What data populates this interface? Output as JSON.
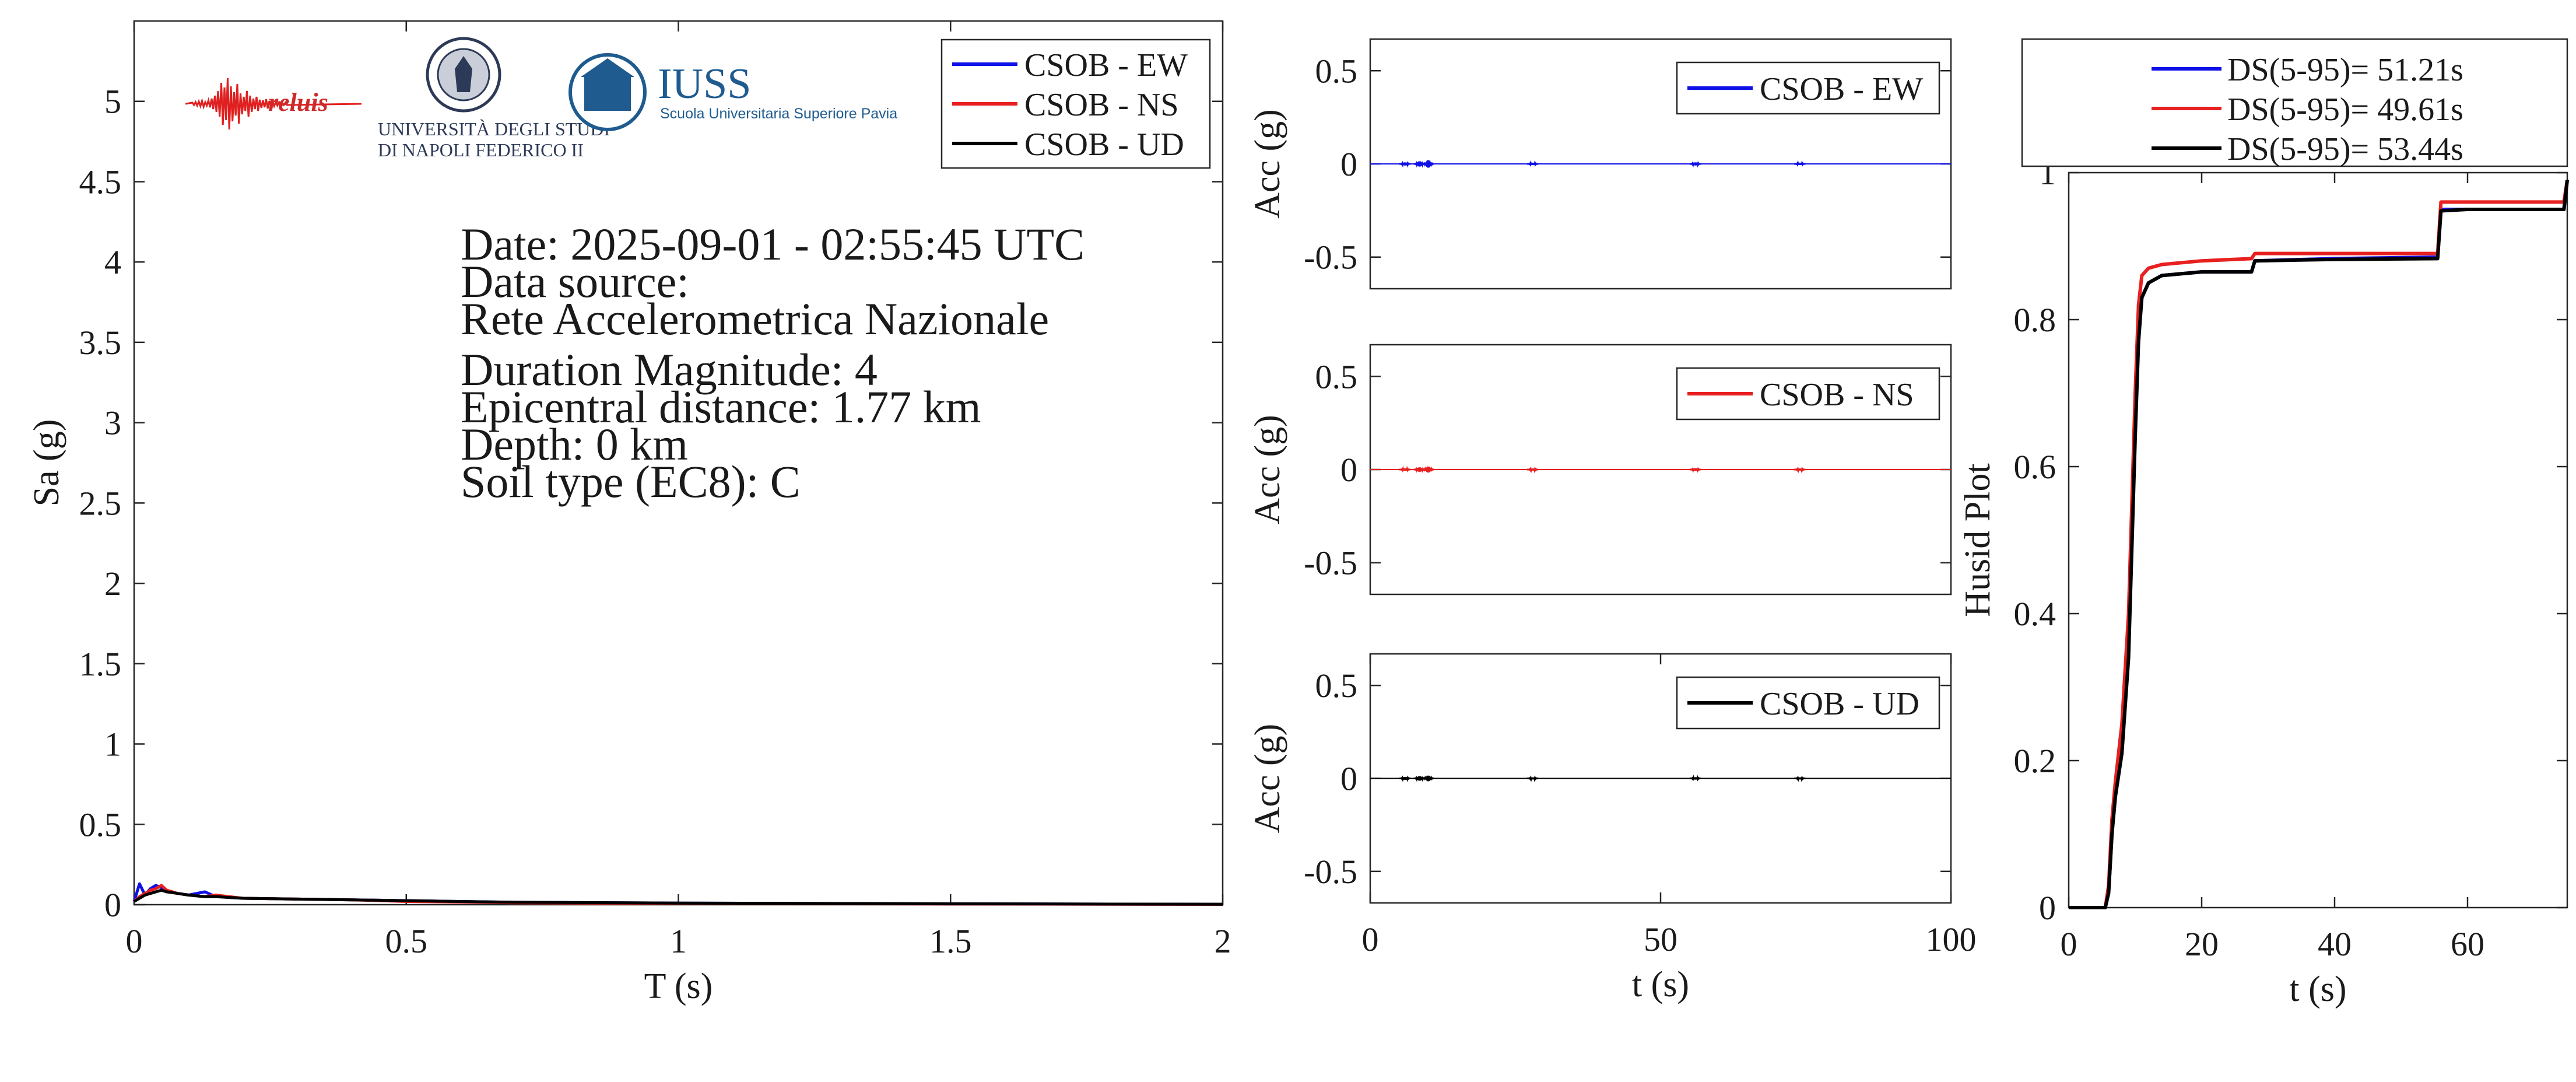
{
  "logos": {
    "reluis": "reluis",
    "unina_line1": "UNIVERSITÀ DEGLI STUDI",
    "unina_line2": "DI NAPOLI FEDERICO II",
    "iuss_name": "IUSS",
    "iuss_subtitle": "Scuola Universitaria Superiore Pavia"
  },
  "info": {
    "date": "Date: 2025-09-01 - 02:55:45 UTC",
    "source_label": "Data source:",
    "source_name": "Rete Accelerometrica Nazionale",
    "magnitude": "Duration Magnitude: 4",
    "distance": "Epicentral distance: 1.77 km",
    "depth": "Depth: 0 km",
    "soil": "Soil type (EC8): C"
  },
  "colors": {
    "ew": "#1010e8",
    "ns": "#e82020",
    "ud": "#000000",
    "axis": "#262626"
  },
  "chart_data": [
    {
      "type": "line",
      "xlabel": "T (s)",
      "ylabel": "Sa (g)",
      "xlim": [
        0,
        2
      ],
      "ylim": [
        0,
        5.5
      ],
      "xticks": [
        "0",
        "0.5",
        "1",
        "1.5",
        "2"
      ],
      "yticks": [
        "0",
        "0.5",
        "1",
        "1.5",
        "2",
        "2.5",
        "3",
        "3.5",
        "4",
        "4.5",
        "5"
      ],
      "grid": false,
      "legend_position": "top-right",
      "series": [
        {
          "name": "CSOB - EW",
          "x": [
            0,
            0.01,
            0.02,
            0.03,
            0.04,
            0.06,
            0.08,
            0.1,
            0.13,
            0.15,
            0.2,
            0.3,
            0.4,
            0.5,
            0.7,
            1,
            1.5,
            2
          ],
          "y": [
            0.02,
            0.13,
            0.06,
            0.1,
            0.12,
            0.09,
            0.07,
            0.06,
            0.08,
            0.05,
            0.04,
            0.035,
            0.03,
            0.025,
            0.015,
            0.01,
            0.005,
            0.003
          ]
        },
        {
          "name": "CSOB - NS",
          "x": [
            0,
            0.01,
            0.02,
            0.03,
            0.04,
            0.05,
            0.06,
            0.08,
            0.1,
            0.13,
            0.15,
            0.2,
            0.3,
            0.4,
            0.5,
            0.7,
            1,
            1.5,
            2
          ],
          "y": [
            0.02,
            0.05,
            0.07,
            0.09,
            0.1,
            0.12,
            0.09,
            0.07,
            0.06,
            0.05,
            0.06,
            0.04,
            0.035,
            0.03,
            0.02,
            0.012,
            0.008,
            0.004,
            0.002
          ]
        },
        {
          "name": "CSOB - UD",
          "x": [
            0,
            0.01,
            0.02,
            0.03,
            0.04,
            0.05,
            0.06,
            0.08,
            0.1,
            0.13,
            0.15,
            0.2,
            0.3,
            0.4,
            0.5,
            0.7,
            1,
            1.5,
            2
          ],
          "y": [
            0.02,
            0.04,
            0.06,
            0.07,
            0.08,
            0.09,
            0.08,
            0.07,
            0.06,
            0.05,
            0.05,
            0.04,
            0.035,
            0.03,
            0.025,
            0.015,
            0.01,
            0.005,
            0.003
          ]
        }
      ]
    },
    {
      "type": "line",
      "xlabel": "",
      "ylabel": "Acc (g)",
      "xlim": [
        0,
        100
      ],
      "ylim": [
        -0.67,
        0.67
      ],
      "yticks": [
        "-0.5",
        "0",
        "0.5"
      ],
      "legend_position": "top-right",
      "series": [
        {
          "name": "CSOB - EW",
          "bursts": [
            [
              6,
              0.008
            ],
            [
              8.5,
              0.014
            ],
            [
              10,
              0.02
            ],
            [
              28,
              0.006
            ],
            [
              56,
              0.008
            ],
            [
              74,
              0.006
            ]
          ]
        }
      ]
    },
    {
      "type": "line",
      "xlabel": "",
      "ylabel": "Acc (g)",
      "xlim": [
        0,
        100
      ],
      "ylim": [
        -0.67,
        0.67
      ],
      "yticks": [
        "-0.5",
        "0",
        "0.5"
      ],
      "legend_position": "top-right",
      "series": [
        {
          "name": "CSOB - NS",
          "bursts": [
            [
              6,
              0.006
            ],
            [
              8.5,
              0.012
            ],
            [
              10,
              0.016
            ],
            [
              28,
              0.005
            ],
            [
              56,
              0.007
            ],
            [
              74,
              0.005
            ]
          ]
        }
      ]
    },
    {
      "type": "line",
      "xlabel": "t (s)",
      "ylabel": "Acc (g)",
      "xlim": [
        0,
        100
      ],
      "ylim": [
        -0.67,
        0.67
      ],
      "xticks": [
        "0",
        "50",
        "100"
      ],
      "yticks": [
        "-0.5",
        "0",
        "0.5"
      ],
      "legend_position": "top-right",
      "series": [
        {
          "name": "CSOB - UD",
          "bursts": [
            [
              6,
              0.008
            ],
            [
              8.5,
              0.012
            ],
            [
              10,
              0.015
            ],
            [
              28,
              0.005
            ],
            [
              56,
              0.006
            ],
            [
              74,
              0.005
            ]
          ]
        }
      ]
    },
    {
      "type": "line",
      "xlabel": "t (s)",
      "ylabel": "Husid Plot",
      "xlim": [
        0,
        75
      ],
      "ylim": [
        0,
        1
      ],
      "xticks": [
        "0",
        "20",
        "40",
        "60"
      ],
      "yticks": [
        "0",
        "0.2",
        "0.4",
        "0.6",
        "0.8",
        "1"
      ],
      "legend_position": "top",
      "series": [
        {
          "name": "DS(5-95)= 51.21s",
          "x": [
            0,
            5.5,
            6,
            6.5,
            7,
            8,
            9,
            10,
            10.5,
            11,
            12,
            14,
            20,
            27.5,
            28,
            40,
            55.5,
            56,
            60,
            74.5,
            75
          ],
          "y": [
            0,
            0,
            0.02,
            0.1,
            0.15,
            0.22,
            0.35,
            0.65,
            0.78,
            0.83,
            0.85,
            0.86,
            0.865,
            0.865,
            0.88,
            0.883,
            0.885,
            0.95,
            0.95,
            0.95,
            0.99
          ]
        },
        {
          "name": "DS(5-95)= 49.61s",
          "x": [
            0,
            5.5,
            6,
            6.5,
            7,
            8,
            9,
            10,
            10.5,
            11,
            12,
            14,
            20,
            27.5,
            28,
            40,
            55.5,
            56,
            60,
            74.5,
            75
          ],
          "y": [
            0,
            0,
            0.03,
            0.12,
            0.17,
            0.25,
            0.4,
            0.7,
            0.82,
            0.86,
            0.87,
            0.875,
            0.88,
            0.883,
            0.89,
            0.89,
            0.89,
            0.96,
            0.96,
            0.96,
            0.99
          ]
        },
        {
          "name": "DS(5-95)= 53.44s",
          "x": [
            0,
            5.5,
            6,
            6.5,
            7,
            8,
            9,
            10,
            10.5,
            11,
            12,
            14,
            20,
            27.5,
            28,
            40,
            55.5,
            56,
            60,
            74.5,
            75
          ],
          "y": [
            0,
            0,
            0.02,
            0.1,
            0.15,
            0.21,
            0.34,
            0.64,
            0.77,
            0.83,
            0.85,
            0.86,
            0.865,
            0.865,
            0.88,
            0.882,
            0.883,
            0.948,
            0.95,
            0.95,
            0.99
          ]
        }
      ]
    }
  ]
}
